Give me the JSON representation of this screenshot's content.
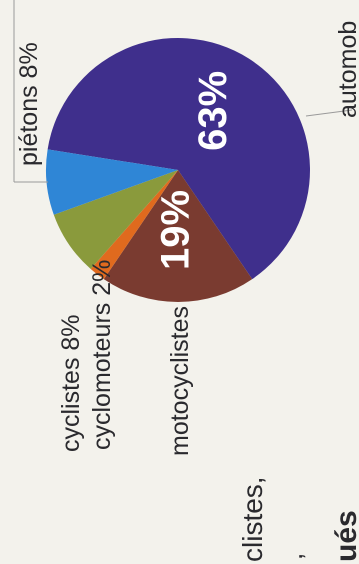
{
  "chart_data": {
    "type": "pie",
    "slices": [
      {
        "label": "automobilistes",
        "value": 63,
        "display": "63%",
        "color": "#3f2f8c"
      },
      {
        "label": "motocyclistes",
        "value": 19,
        "display": "19%",
        "color": "#7a3b30"
      },
      {
        "label": "cyclomoteurs 2%",
        "value": 2,
        "display": "",
        "color": "#e06a1e"
      },
      {
        "label": "cyclistes 8%",
        "value": 8,
        "display": "",
        "color": "#8a9a3c"
      },
      {
        "label": "piétons 8%",
        "value": 8,
        "display": "",
        "color": "#2f86d6"
      }
    ]
  },
  "labels": {
    "pietons": "piétons 8%",
    "automobilistes": "automob",
    "cyclistes": "cyclistes 8%",
    "cyclomoteurs": "cyclomoteurs 2%",
    "motocyclistes": "motocyclistes",
    "cut_line_1": "clistes,",
    "cut_line_2": ",",
    "cut_heading": "ués"
  }
}
